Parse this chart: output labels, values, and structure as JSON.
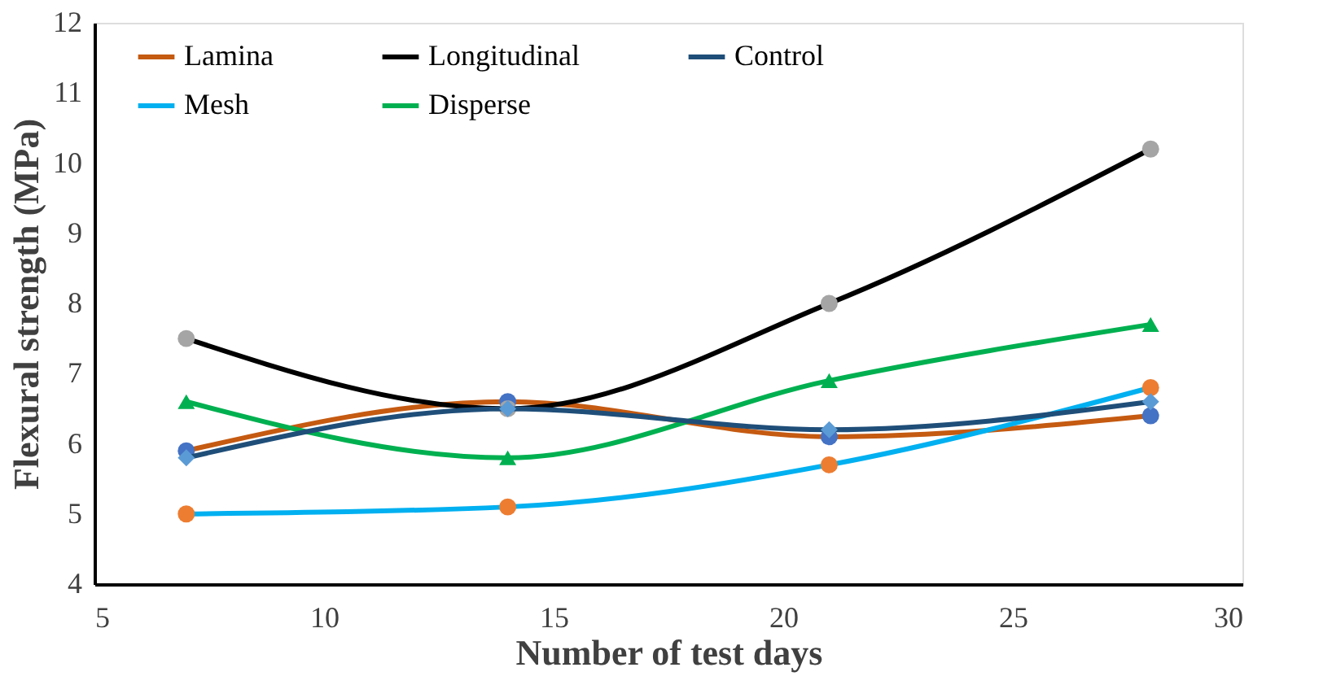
{
  "chart_data": {
    "type": "line",
    "xlabel": "Number of test days",
    "ylabel": "Flexural strength (MPa)",
    "x": [
      7,
      14,
      21,
      28
    ],
    "xlim": [
      5,
      30
    ],
    "xticks": [
      5,
      10,
      15,
      20,
      25,
      30
    ],
    "ylim": [
      4,
      12
    ],
    "yticks": [
      4,
      5,
      6,
      7,
      8,
      9,
      10,
      11,
      12
    ],
    "grid": false,
    "legend": "top left",
    "line_style": "solid",
    "series": [
      {
        "name": "Lamina",
        "color": "#c55a11",
        "colors": [
          "#4472c4",
          "#4472c4",
          "#4472c4",
          "#4472c4"
        ],
        "marker": "circle",
        "values": [
          5.9,
          6.6,
          6.1,
          6.4
        ]
      },
      {
        "name": "Mesh",
        "color": "#00b0f0",
        "colors": [
          "#ed7d31",
          "#ed7d31",
          "#ed7d31",
          "#ed7d31"
        ],
        "marker": "circle",
        "values": [
          5.0,
          5.1,
          5.7,
          6.8
        ]
      },
      {
        "name": "Longitudinal",
        "color": "#000000",
        "colors": [
          "#a5a5a5",
          "#a5a5a5",
          "#a5a5a5",
          "#a5a5a5"
        ],
        "marker": "circle",
        "values": [
          7.5,
          6.5,
          8.0,
          10.2
        ]
      },
      {
        "name": "Disperse",
        "color": "#00b050",
        "colors": [
          "#00b050",
          "#00b050",
          "#00b050",
          "#00b050"
        ],
        "marker": "triangle",
        "values": [
          6.6,
          5.8,
          6.9,
          7.7
        ]
      },
      {
        "name": "Control",
        "color": "#1f4e79",
        "colors": [
          "#5b9bd5",
          "#5b9bd5",
          "#5b9bd5",
          "#5b9bd5"
        ],
        "marker": "diamond",
        "values": [
          5.8,
          6.5,
          6.2,
          6.6
        ]
      }
    ]
  }
}
